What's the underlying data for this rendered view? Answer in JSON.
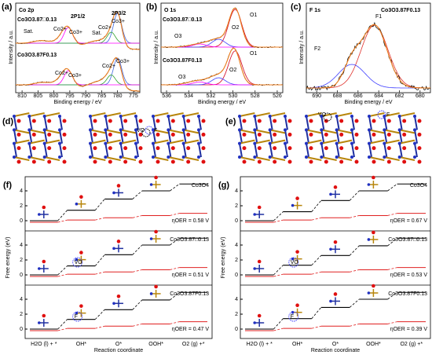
{
  "spectra": [
    {
      "letter": "(a)",
      "title": "Co 2p",
      "xlabel": "Binding energy / eV",
      "ylabel": "Intensity / a.u.",
      "xticks": [
        "810",
        "805",
        "800",
        "795",
        "790",
        "785",
        "780",
        "775"
      ],
      "labels": [
        "Co3O3.87□0.13",
        "2P1/2",
        "2P3/2",
        "Sat.",
        "Co2+",
        "Co3+",
        "Sat.",
        "Co3+",
        "Co2+",
        "Co3O3.87F0.13",
        "Co2+",
        "Co3+",
        "Co2+",
        "Co3+"
      ]
    },
    {
      "letter": "(b)",
      "title": "O 1s",
      "xlabel": "Binding energy / eV",
      "ylabel": "Intensity / a.u.",
      "xticks": [
        "536",
        "534",
        "532",
        "530",
        "528",
        "526"
      ],
      "labels": [
        "Co3O3.87□0.13",
        "O1",
        "O2",
        "O3",
        "Co3O3.87F0.13",
        "O1",
        "O2",
        "O3"
      ]
    },
    {
      "letter": "(c)",
      "title": "F 1s",
      "xlabel": "Binding energy / eV",
      "ylabel": "Intensity / a.u.",
      "xticks": [
        "690",
        "688",
        "686",
        "684",
        "682",
        "680"
      ],
      "labels": [
        "Co3O3.87F0.13",
        "F1",
        "F2"
      ]
    }
  ],
  "structures": [
    {
      "letter": "(d)",
      "labels": [
        "VO",
        "F"
      ]
    },
    {
      "letter": "(e)",
      "labels": [
        "VO",
        "F"
      ]
    }
  ],
  "energy": [
    {
      "letter": "(f)",
      "ylabel": "Free energy (eV)",
      "xlabel": "Reaction coordinate",
      "categories": [
        "H2O (l) + *",
        "OH*",
        "O*",
        "OOH*",
        "O2 (g) +*"
      ],
      "rows": [
        {
          "name": "Co3O4",
          "eta": "ηOER = 0.58 V",
          "yticks": [
            "4",
            "2",
            "0"
          ]
        },
        {
          "name": "Co3O3.87□0.13",
          "eta": "ηOER = 0.51 V",
          "yticks": [
            "4",
            "2",
            "0"
          ],
          "site": "VO"
        },
        {
          "name": "Co3O3.87F0.13",
          "eta": "ηOER = 0.47 V",
          "yticks": [
            "4",
            "2",
            "0"
          ],
          "site": "F"
        }
      ]
    },
    {
      "letter": "(g)",
      "ylabel": "Free energy (eV)",
      "xlabel": "Reaction coordinate",
      "categories": [
        "H2O (l) + *",
        "OH*",
        "O*",
        "OOH*",
        "O2 (g) +*"
      ],
      "rows": [
        {
          "name": "Co3O4",
          "eta": "ηOER = 0.67 V",
          "yticks": [
            "4",
            "2",
            "0"
          ]
        },
        {
          "name": "Co3O3.87□0.13",
          "eta": "ηOER = 0.53 V",
          "yticks": [
            "4",
            "2",
            "0"
          ],
          "site": "VO"
        },
        {
          "name": "Co3O3.87F0.13",
          "eta": "ηOER = 0.39 V",
          "yticks": [
            "4",
            "2",
            "0"
          ],
          "site": "F"
        }
      ]
    }
  ]
}
